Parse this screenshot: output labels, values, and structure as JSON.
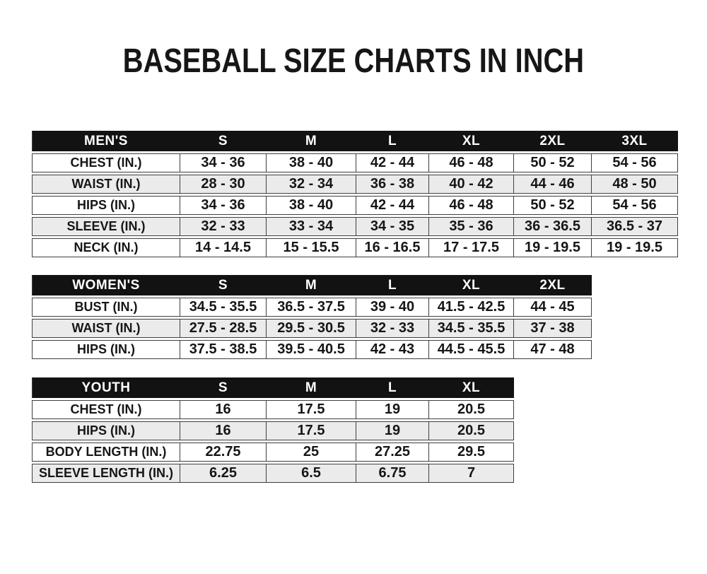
{
  "page": {
    "title": "BASEBALL SIZE CHARTS IN INCH"
  },
  "colors": {
    "header_bg": "#121212",
    "header_text": "#ffffff",
    "row_white": "#ffffff",
    "row_gray": "#ebebeb",
    "border": "#3f3f3f",
    "text": "#161616"
  },
  "tables": [
    {
      "id": "mens",
      "header": [
        "MEN'S",
        "S",
        "M",
        "L",
        "XL",
        "2XL",
        "3XL"
      ],
      "rows": [
        [
          "CHEST (IN.)",
          "34 - 36",
          "38 - 40",
          "42 - 44",
          "46 - 48",
          "50 - 52",
          "54 - 56"
        ],
        [
          "WAIST (IN.)",
          "28 - 30",
          "32 - 34",
          "36 - 38",
          "40 - 42",
          "44 - 46",
          "48 - 50"
        ],
        [
          "HIPS (IN.)",
          "34 - 36",
          "38 - 40",
          "42 - 44",
          "46 - 48",
          "50 - 52",
          "54 - 56"
        ],
        [
          "SLEEVE (IN.)",
          "32 - 33",
          "33 - 34",
          "34 - 35",
          "35 - 36",
          "36 - 36.5",
          "36.5 - 37"
        ],
        [
          "NECK (IN.)",
          "14 - 14.5",
          "15 - 15.5",
          "16 - 16.5",
          "17 - 17.5",
          "19 - 19.5",
          "19 - 19.5"
        ]
      ]
    },
    {
      "id": "womens",
      "header": [
        "WOMEN'S",
        "S",
        "M",
        "L",
        "XL",
        "2XL"
      ],
      "rows": [
        [
          "BUST (IN.)",
          "34.5 - 35.5",
          "36.5 - 37.5",
          "39 - 40",
          "41.5 - 42.5",
          "44 - 45"
        ],
        [
          "WAIST (IN.)",
          "27.5 - 28.5",
          "29.5 - 30.5",
          "32 - 33",
          "34.5 - 35.5",
          "37 - 38"
        ],
        [
          "HIPS (IN.)",
          "37.5 - 38.5",
          "39.5 - 40.5",
          "42 - 43",
          "44.5 - 45.5",
          "47 - 48"
        ]
      ]
    },
    {
      "id": "youth",
      "header": [
        "YOUTH",
        "S",
        "M",
        "L",
        "XL"
      ],
      "rows": [
        [
          "CHEST (IN.)",
          "16",
          "17.5",
          "19",
          "20.5"
        ],
        [
          "HIPS (IN.)",
          "16",
          "17.5",
          "19",
          "20.5"
        ],
        [
          "BODY LENGTH (IN.)",
          "22.75",
          "25",
          "27.25",
          "29.5"
        ],
        [
          "SLEEVE LENGTH (IN.)",
          "6.25",
          "6.5",
          "6.75",
          "7"
        ]
      ]
    }
  ]
}
